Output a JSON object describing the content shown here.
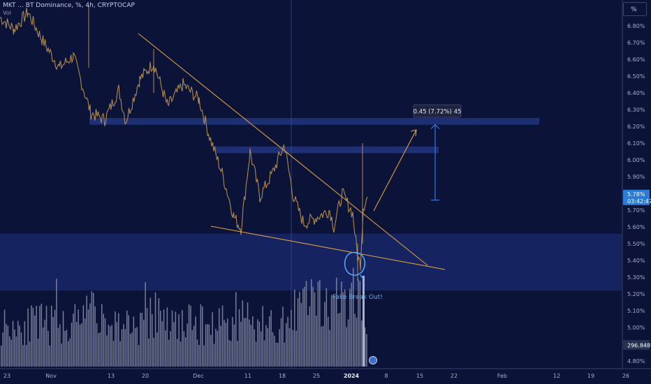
{
  "header": {
    "symbol_line": "MKT ... BT Dominance, %, 4h, CRYPTOCAP",
    "sub_line": "Vol"
  },
  "axis_unit_button": "%",
  "colors": {
    "background": "#0b1339",
    "price_line": "#b08a4f",
    "trendline": "#e0a040",
    "zone": "#1a2a6e",
    "measure": "#3a6fd0",
    "volume": "#8b90a8",
    "price_tag": "#2a7cd6"
  },
  "chart_data": {
    "type": "line",
    "title": "MKT ... BT Dominance, %, 4h, CRYPTOCAP",
    "ylabel": "%",
    "ylim": [
      4.75,
      6.95
    ],
    "y_ticks": [
      "6.80%",
      "6.70%",
      "6.60%",
      "6.50%",
      "6.40%",
      "6.30%",
      "6.20%",
      "6.10%",
      "6.00%",
      "5.90%",
      "5.80%",
      "5.70%",
      "5.60%",
      "5.50%",
      "5.40%",
      "5.30%",
      "5.20%",
      "5.10%",
      "5.00%",
      "4.90%",
      "4.80%"
    ],
    "x_ticks": [
      "23",
      "Nov",
      "13",
      "20",
      "Dec",
      "11",
      "18",
      "25",
      "2024",
      "8",
      "15",
      "22",
      "Feb",
      "12",
      "19",
      "26"
    ],
    "series": [
      {
        "name": "",
        "x_start": "Oct 23",
        "x_end": "Jan 4",
        "y_start": 6.85,
        "y_end": 5.78
      }
    ],
    "current_price": "5.78%",
    "countdown": "03:42:47",
    "volume_label": "296.848B",
    "zones": [
      {
        "label": "resistance-upper",
        "y_low": 6.21,
        "y_high": 6.25
      },
      {
        "label": "resistance-lower",
        "y_low": 6.04,
        "y_high": 6.08
      },
      {
        "label": "support",
        "y_low": 5.22,
        "y_high": 5.56
      }
    ],
    "trendlines": [
      "upper descending",
      "lower descending"
    ],
    "measure_label": "0.45 (7.72%) 45",
    "measure_from": 5.76,
    "measure_to": 6.21,
    "annotation": "Fake Break Out!",
    "grid": false
  }
}
